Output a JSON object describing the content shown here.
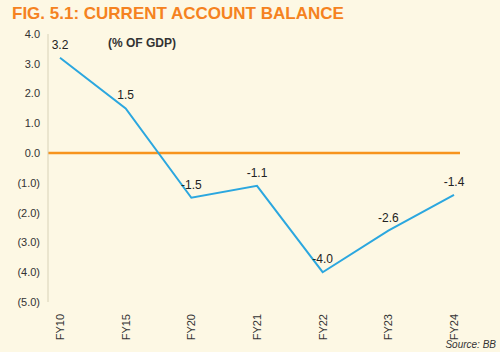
{
  "chart_data": {
    "type": "line",
    "title": "FIG. 5.1: CURRENT ACCOUNT BALANCE",
    "subtitle": "(% OF GDP)",
    "annotations": [
      "Source: BB"
    ],
    "categories": [
      "FY10",
      "FY15",
      "FY20",
      "FY21",
      "FY22",
      "FY23",
      "FY24"
    ],
    "values": [
      3.2,
      1.5,
      -1.5,
      -1.1,
      -4.0,
      -2.6,
      -1.4
    ],
    "value_labels": [
      "3.2",
      "1.5",
      "-1.5",
      "-1.1",
      "-4.0",
      "-2.6",
      "-1.4"
    ],
    "color": "#2ba7df",
    "ylim": [
      -5,
      4
    ],
    "yticks": [
      {
        "value": 4,
        "label": "4.0"
      },
      {
        "value": 3,
        "label": "3.0"
      },
      {
        "value": 2,
        "label": "2.0"
      },
      {
        "value": 1,
        "label": "1.0"
      },
      {
        "value": 0,
        "label": "0.0"
      },
      {
        "value": -1,
        "label": "(1.0)"
      },
      {
        "value": -2,
        "label": "(2.0)"
      },
      {
        "value": -3,
        "label": "(3.0)"
      },
      {
        "value": -4,
        "label": "(4.0)"
      },
      {
        "value": -5,
        "label": "(5.0)"
      }
    ],
    "grid": false,
    "data_labels": true
  }
}
